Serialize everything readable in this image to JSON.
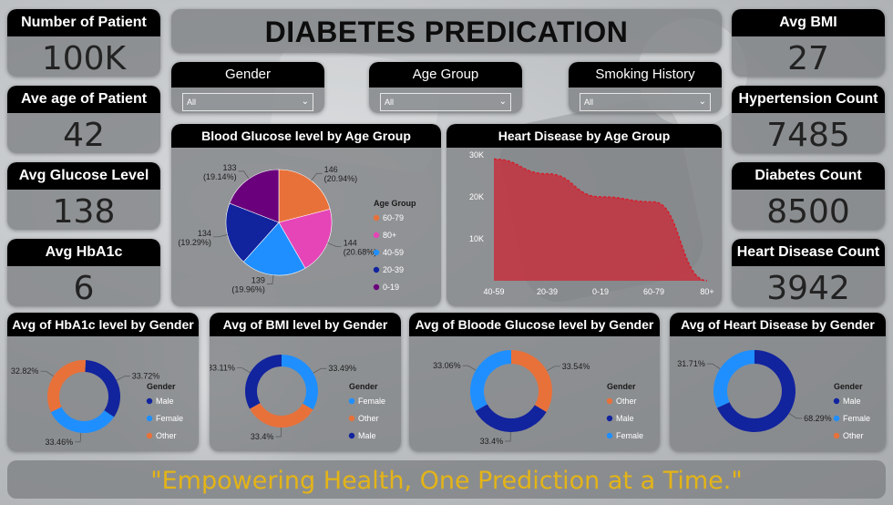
{
  "title": "DIABETES PREDICATION",
  "quote": "\"Empowering Health, One Prediction at a Time.\"",
  "kpis_left": [
    {
      "label": "Number of Patient",
      "value": "100K"
    },
    {
      "label": "Ave age of Patient",
      "value": "42"
    },
    {
      "label": "Avg Glucose Level",
      "value": "138"
    },
    {
      "label": "Avg HbA1c",
      "value": "6"
    }
  ],
  "kpis_right": [
    {
      "label": "Avg BMI",
      "value": "27"
    },
    {
      "label": "Hypertension Count",
      "value": "7485"
    },
    {
      "label": "Diabetes Count",
      "value": "8500"
    },
    {
      "label": "Heart Disease Count",
      "value": "3942"
    }
  ],
  "slicers": [
    {
      "label": "Gender",
      "value": "All"
    },
    {
      "label": "Age Group",
      "value": "All"
    },
    {
      "label": "Smoking History",
      "value": "All"
    }
  ],
  "colors": {
    "orange": "#e8713a",
    "pink": "#e545b6",
    "blue": "#1f8fff",
    "navy": "#12239e",
    "purple": "#6a007b",
    "area": "#c4313e"
  },
  "chart_data": [
    {
      "type": "pie",
      "title": "Blood Glucose level by Age Group",
      "legend_title": "Age Group",
      "legend_position": "right",
      "slices": [
        {
          "name": "60-79",
          "value": 146,
          "label": "146 (20.94%)",
          "color": "#e8713a"
        },
        {
          "name": "80+",
          "value": 144,
          "label": "144 (20.68%)",
          "color": "#e545b6"
        },
        {
          "name": "40-59",
          "value": 139,
          "label": "139 (19.96%)",
          "color": "#1f8fff"
        },
        {
          "name": "20-39",
          "value": 134,
          "label": "134 (19.29%)",
          "color": "#12239e"
        },
        {
          "name": "0-19",
          "value": 133,
          "label": "133 (19.14%)",
          "color": "#6a007b"
        }
      ]
    },
    {
      "type": "area",
      "title": "Heart Disease by Age Group",
      "categories": [
        "40-59",
        "20-39",
        "0-19",
        "60-79",
        "80+"
      ],
      "values": [
        29000,
        25500,
        20000,
        18800,
        0
      ],
      "ylim": [
        0,
        30000
      ],
      "yticks": [
        {
          "v": 10000,
          "t": "10K"
        },
        {
          "v": 20000,
          "t": "20K"
        },
        {
          "v": 30000,
          "t": "30K"
        }
      ]
    },
    {
      "type": "pie",
      "title": "Avg of HbA1c level by Gender",
      "legend_title": "Gender",
      "donut": true,
      "slices": [
        {
          "name": "Male",
          "value": 33.72,
          "label": "33.72%",
          "color": "#12239e"
        },
        {
          "name": "Female",
          "value": 33.46,
          "label": "33.46%",
          "color": "#1f8fff"
        },
        {
          "name": "Other",
          "value": 32.82,
          "label": "32.82%",
          "color": "#e8713a"
        }
      ]
    },
    {
      "type": "pie",
      "title": "Avg of BMI level by Gender",
      "legend_title": "Gender",
      "donut": true,
      "slices": [
        {
          "name": "Female",
          "value": 33.49,
          "label": "33.49%",
          "color": "#1f8fff"
        },
        {
          "name": "Other",
          "value": 33.4,
          "label": "33.4%",
          "color": "#e8713a"
        },
        {
          "name": "Male",
          "value": 33.11,
          "label": "33.11%",
          "color": "#12239e"
        }
      ]
    },
    {
      "type": "pie",
      "title": "Avg of Bloode Glucose level by Gender",
      "legend_title": "Gender",
      "donut": true,
      "slices": [
        {
          "name": "Other",
          "value": 33.54,
          "label": "33.54%",
          "color": "#e8713a"
        },
        {
          "name": "Male",
          "value": 33.4,
          "label": "33.4%",
          "color": "#12239e"
        },
        {
          "name": "Female",
          "value": 33.06,
          "label": "33.06%",
          "color": "#1f8fff"
        }
      ]
    },
    {
      "type": "pie",
      "title": "Avg of Heart Disease by Gender",
      "legend_title": "Gender",
      "donut": true,
      "slices": [
        {
          "name": "Male",
          "value": 68.29,
          "label": "68.29%",
          "color": "#12239e"
        },
        {
          "name": "Female",
          "value": 31.71,
          "label": "31.71%",
          "color": "#1f8fff"
        },
        {
          "name": "Other",
          "value": 0,
          "label": "",
          "color": "#e8713a"
        }
      ]
    }
  ]
}
